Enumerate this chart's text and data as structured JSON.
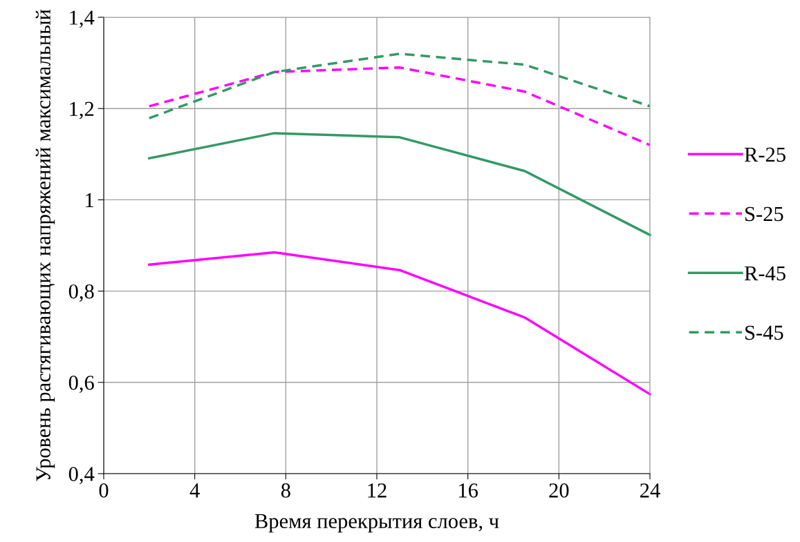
{
  "chart_data": {
    "type": "line",
    "xlabel": "Время перекрытия слоев, ч",
    "ylabel": "Уровень растягивающих напряжений максимальный",
    "x": [
      2,
      7.5,
      13,
      18.5,
      24
    ],
    "series": [
      {
        "name": "R-25",
        "color": "#ff00ff",
        "line_style": "solid",
        "values": [
          0.858,
          0.885,
          0.846,
          0.742,
          0.574
        ]
      },
      {
        "name": "S-25",
        "color": "#ff00ff",
        "line_style": "dashed",
        "values": [
          1.205,
          1.28,
          1.29,
          1.237,
          1.12
        ]
      },
      {
        "name": "R-45",
        "color": "#339966",
        "line_style": "solid",
        "values": [
          1.091,
          1.146,
          1.137,
          1.063,
          0.923
        ]
      },
      {
        "name": "S-45",
        "color": "#339966",
        "line_style": "dashed",
        "values": [
          1.179,
          1.28,
          1.32,
          1.296,
          1.205
        ]
      }
    ],
    "xlim": [
      0,
      24
    ],
    "xticks": [
      0,
      4,
      8,
      12,
      16,
      20,
      24
    ],
    "ylim": [
      0.4,
      1.4
    ],
    "yticks": [
      {
        "value": 0.4,
        "label": "0,4"
      },
      {
        "value": 0.6,
        "label": "0,6"
      },
      {
        "value": 0.8,
        "label": "0,8"
      },
      {
        "value": 1,
        "label": "1"
      },
      {
        "value": 1.2,
        "label": "1,2"
      },
      {
        "value": 1.4,
        "label": "1,4"
      }
    ],
    "grid": true,
    "legend": "right",
    "marker": "none"
  }
}
